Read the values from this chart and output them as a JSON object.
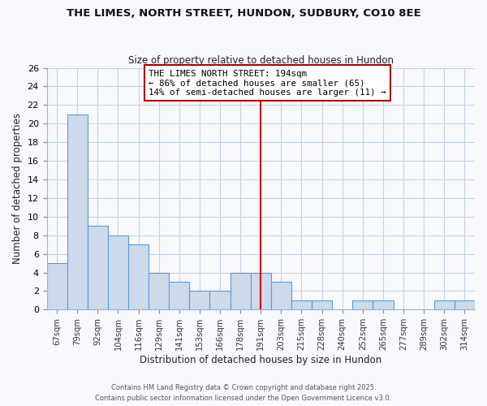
{
  "title": "THE LIMES, NORTH STREET, HUNDON, SUDBURY, CO10 8EE",
  "subtitle": "Size of property relative to detached houses in Hundon",
  "xlabel": "Distribution of detached houses by size in Hundon",
  "ylabel": "Number of detached properties",
  "categories": [
    "67sqm",
    "79sqm",
    "92sqm",
    "104sqm",
    "116sqm",
    "129sqm",
    "141sqm",
    "153sqm",
    "166sqm",
    "178sqm",
    "191sqm",
    "203sqm",
    "215sqm",
    "228sqm",
    "240sqm",
    "252sqm",
    "265sqm",
    "277sqm",
    "289sqm",
    "302sqm",
    "314sqm"
  ],
  "values": [
    5,
    21,
    9,
    8,
    7,
    4,
    3,
    2,
    2,
    4,
    4,
    3,
    1,
    1,
    0,
    1,
    1,
    0,
    0,
    1,
    1
  ],
  "bar_color": "#ccdaec",
  "bar_edge_color": "#5b9bd5",
  "vline_x_index": 10,
  "vline_color": "#cc0000",
  "annotation_text": "THE LIMES NORTH STREET: 194sqm\n← 86% of detached houses are smaller (65)\n14% of semi-detached houses are larger (11) →",
  "annotation_box_edgecolor": "#aa0000",
  "ylim": [
    0,
    26
  ],
  "yticks": [
    0,
    2,
    4,
    6,
    8,
    10,
    12,
    14,
    16,
    18,
    20,
    22,
    24,
    26
  ],
  "footer1": "Contains HM Land Registry data © Crown copyright and database right 2025.",
  "footer2": "Contains public sector information licensed under the Open Government Licence v3.0.",
  "bg_color": "#f7f9fc",
  "plot_bg_color": "#f7f9fc",
  "grid_color": "#c5d4e8"
}
